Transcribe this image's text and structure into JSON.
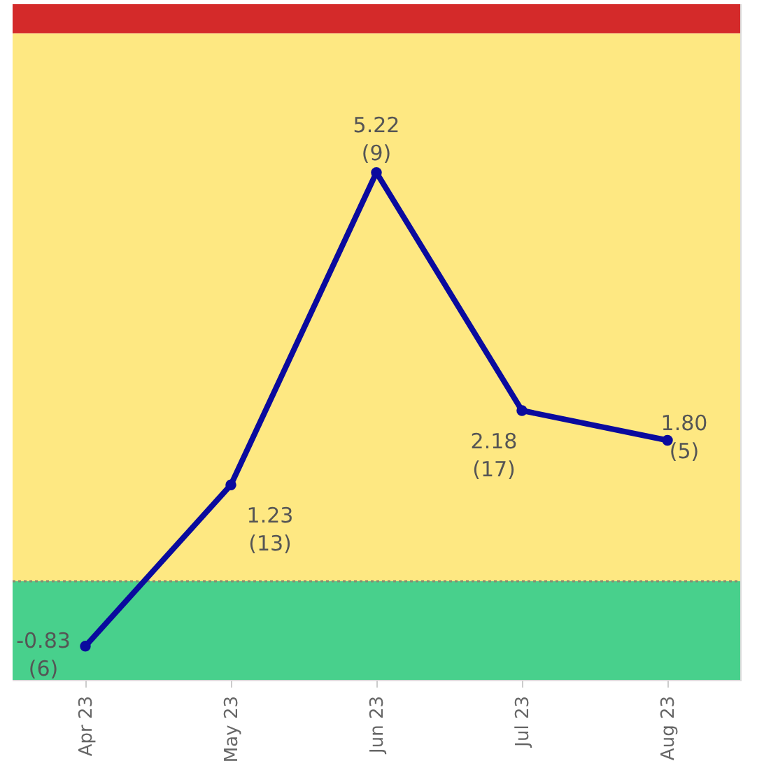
{
  "chart_data": {
    "type": "line",
    "categories": [
      "Apr 23",
      "May 23",
      "Jun 23",
      "Jul 23",
      "Aug 23"
    ],
    "series": [
      {
        "color": "#0a0a9e",
        "values": [
          -0.83,
          1.23,
          5.22,
          2.18,
          1.8
        ],
        "value_labels": [
          "-0.83\n(6)",
          "1.23\n(13)",
          "5.22\n(9)",
          "2.18\n(17)",
          "1.80\n(5)"
        ]
      }
    ],
    "ylim": [
      -1.26,
      7.37
    ],
    "bands": [
      {
        "axis": "y",
        "from": -1.26,
        "to": 0,
        "color": "#48d08c"
      },
      {
        "axis": "y",
        "from": 0,
        "to": 7,
        "color": "#fee882"
      },
      {
        "axis": "y",
        "from": 7,
        "to": 7.37,
        "color": "#d42a2a"
      }
    ],
    "ref_lines": [
      {
        "axis": "y",
        "value": 0,
        "color": "#8a8a70",
        "line_style": "dotted"
      }
    ],
    "marker": "circle",
    "line_style": "solid",
    "grid": false,
    "tick_labels": "x"
  }
}
